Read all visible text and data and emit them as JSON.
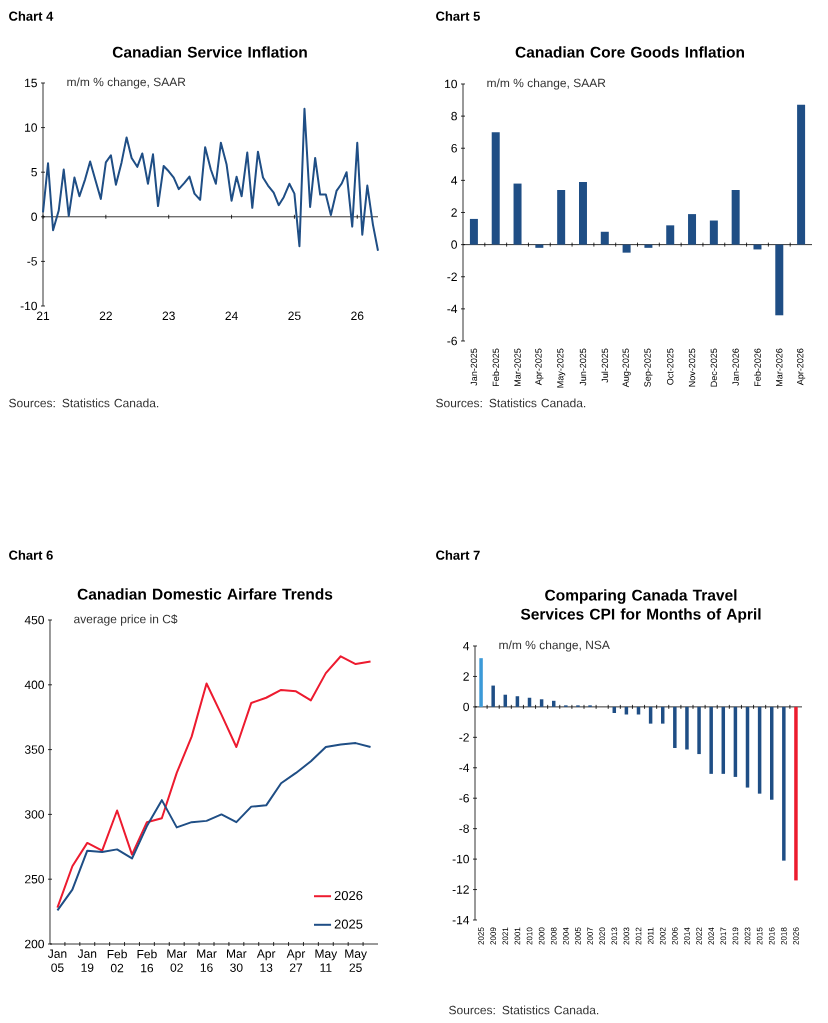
{
  "chart_data": [
    {
      "type": "line",
      "title": "Canadian Service Inflation",
      "ylabel": "m/m % change, SAAR",
      "annotations": [
        "Chart 4",
        "Sources: Statistics Canada."
      ],
      "x": [
        "2021-01",
        "2021-02",
        "2021-03",
        "2021-04",
        "2021-05",
        "2021-06",
        "2021-07",
        "2021-08",
        "2021-09",
        "2021-10",
        "2021-11",
        "2021-12",
        "2022-01",
        "2022-02",
        "2022-03",
        "2022-04",
        "2022-05",
        "2022-06",
        "2022-07",
        "2022-08",
        "2022-09",
        "2022-10",
        "2022-11",
        "2022-12",
        "2023-01",
        "2023-02",
        "2023-03",
        "2023-04",
        "2023-05",
        "2023-06",
        "2023-07",
        "2023-08",
        "2023-09",
        "2023-10",
        "2023-11",
        "2023-12",
        "2024-01",
        "2024-02",
        "2024-03",
        "2024-04",
        "2024-05",
        "2024-06",
        "2024-07",
        "2024-08",
        "2024-09",
        "2024-10",
        "2024-11",
        "2024-12",
        "2025-01",
        "2025-02",
        "2025-03",
        "2025-04",
        "2025-05",
        "2025-06",
        "2025-07",
        "2025-08",
        "2025-09",
        "2025-10",
        "2025-11",
        "2025-12",
        "2026-01",
        "2026-02",
        "2026-03",
        "2026-04",
        "2026-05"
      ],
      "values": [
        0.5,
        6.0,
        -1.5,
        0.7,
        5.3,
        0.1,
        4.4,
        2.3,
        4.2,
        6.2,
        4.2,
        2.0,
        6.1,
        6.9,
        3.6,
        6.1,
        8.9,
        6.6,
        5.6,
        7.1,
        3.7,
        7.0,
        1.2,
        5.7,
        5.1,
        4.4,
        3.1,
        3.8,
        4.5,
        2.6,
        1.9,
        7.8,
        5.3,
        3.7,
        8.3,
        5.9,
        1.8,
        4.5,
        2.3,
        7.2,
        1.0,
        7.3,
        4.4,
        3.5,
        2.7,
        1.3,
        2.2,
        3.7,
        2.6,
        -3.3,
        12.1,
        1.1,
        6.6,
        2.5,
        2.5,
        0.2,
        2.9,
        3.7,
        5.0,
        -1.1,
        8.3,
        -2.0,
        3.5,
        -0.9,
        -3.8
      ],
      "color": "#1f4e85",
      "xlim": [
        "2021-01",
        "2026-05"
      ],
      "xticks": [
        {
          "value": "2021-01",
          "label": "21"
        },
        {
          "value": "2022-01",
          "label": "22"
        },
        {
          "value": "2023-01",
          "label": "23"
        },
        {
          "value": "2024-01",
          "label": "24"
        },
        {
          "value": "2025-01",
          "label": "25"
        },
        {
          "value": "2026-01",
          "label": "26"
        }
      ],
      "ylim": [
        -10,
        15
      ],
      "yticks": [
        -10,
        -5,
        0,
        5,
        10,
        15
      ]
    },
    {
      "type": "bar",
      "title": "Canadian Core Goods Inflation",
      "ylabel": "m/m % change, SAAR",
      "annotations": [
        "Chart 5",
        "Sources: Statistics Canada."
      ],
      "categories": [
        "Jan-2025",
        "Feb-2025",
        "Mar-2025",
        "Apr-2025",
        "May-2025",
        "Jun-2025",
        "Jul-2025",
        "Aug-2025",
        "Sep-2025",
        "Oct-2025",
        "Nov-2025",
        "Dec-2025",
        "Jan-2026",
        "Feb-2026",
        "Mar-2026",
        "Apr-2026"
      ],
      "values": [
        1.6,
        7.0,
        3.8,
        -0.2,
        3.4,
        3.9,
        0.8,
        -0.5,
        -0.2,
        1.2,
        1.9,
        1.5,
        3.4,
        -0.3,
        -4.4,
        8.7
      ],
      "color": "#1f4e85",
      "ylim": [
        -6,
        10
      ],
      "yticks": [
        -6,
        -4,
        -2,
        0,
        2,
        4,
        6,
        8,
        10
      ]
    },
    {
      "type": "line",
      "title": "Canadian Domestic Airfare Trends",
      "ylabel": "average price in C$",
      "annotations": [
        "Chart 6"
      ],
      "categories": [
        "Jan 05",
        null,
        "Jan 19",
        null,
        "Feb 02",
        null,
        "Feb 16",
        null,
        "Mar 02",
        null,
        "Mar 16",
        null,
        "Mar 30",
        null,
        "Apr 13",
        null,
        "Apr 27",
        null,
        "May 11",
        null,
        "May 25",
        null
      ],
      "series": [
        {
          "name": "2026",
          "color": "#ed1b2f",
          "values": [
            228,
            260,
            278,
            272,
            303,
            269,
            294,
            297,
            332,
            360,
            401,
            377,
            352,
            386,
            390,
            396,
            395,
            388,
            409,
            422,
            416,
            418
          ]
        },
        {
          "name": "2025",
          "color": "#1f4e85",
          "values": [
            226,
            242,
            272,
            271,
            273,
            266,
            291,
            311,
            290,
            294,
            295,
            300,
            294,
            306,
            307,
            324,
            332,
            341,
            352,
            354,
            355,
            352
          ]
        }
      ],
      "legend": "bottom right",
      "ylim": [
        200,
        450
      ],
      "yticks": [
        200,
        250,
        300,
        350,
        400,
        450
      ]
    },
    {
      "type": "bar",
      "title": "Comparing Canada Travel Services CPI for Months of April",
      "ylabel": "m/m % change, NSA",
      "annotations": [
        "Chart 7",
        "Sources: Statistics Canada."
      ],
      "categories": [
        "2025",
        "2009",
        "2021",
        "2001",
        "2010",
        "2000",
        "2008",
        "2004",
        "2005",
        "2007",
        "2020",
        "2013",
        "2003",
        "2012",
        "2011",
        "2002",
        "2006",
        "2014",
        "2022",
        "2024",
        "2017",
        "2019",
        "2023",
        "2015",
        "2016",
        "2018",
        "2026"
      ],
      "values": [
        3.2,
        1.4,
        0.8,
        0.7,
        0.6,
        0.5,
        0.4,
        0.1,
        0.1,
        0.1,
        0,
        -0.4,
        -0.5,
        -0.5,
        -1.1,
        -1.1,
        -2.7,
        -2.8,
        -3.1,
        -4.4,
        -4.4,
        -4.6,
        -5.3,
        -5.7,
        -6.1,
        -10.1,
        -11.4
      ],
      "colors": [
        "#3c9ad8",
        "#1f4e85",
        "#1f4e85",
        "#1f4e85",
        "#1f4e85",
        "#1f4e85",
        "#1f4e85",
        "#1f4e85",
        "#1f4e85",
        "#1f4e85",
        "#1f4e85",
        "#1f4e85",
        "#1f4e85",
        "#1f4e85",
        "#1f4e85",
        "#1f4e85",
        "#1f4e85",
        "#1f4e85",
        "#1f4e85",
        "#1f4e85",
        "#1f4e85",
        "#1f4e85",
        "#1f4e85",
        "#1f4e85",
        "#1f4e85",
        "#1f4e85",
        "#ec1c2e"
      ],
      "ylim": [
        -14,
        4
      ],
      "yticks": [
        -14,
        -12,
        -10,
        -8,
        -6,
        -4,
        -2,
        0,
        2,
        4
      ]
    }
  ]
}
